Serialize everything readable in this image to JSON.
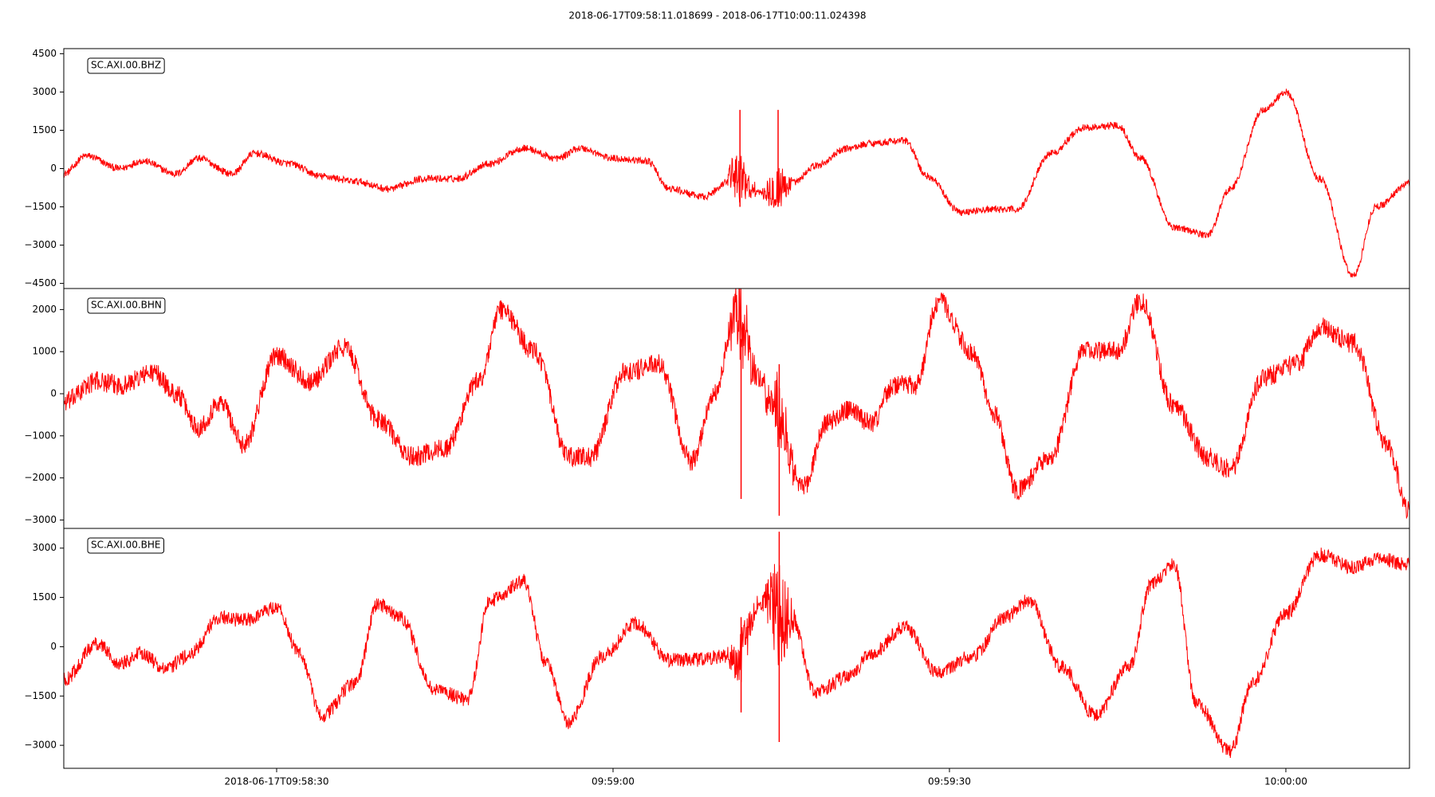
{
  "chart_data": {
    "type": "line",
    "title": "2018-06-17T09:58:11.018699  -  2018-06-17T10:00:11.024398",
    "x_range": [
      "2018-06-17T09:58:11.018699",
      "2018-06-17T10:00:11.024398"
    ],
    "x_ticks": [
      {
        "time": "2018-06-17T09:58:30",
        "label": "2018-06-17T09:58:30"
      },
      {
        "time": "2018-06-17T09:59:00",
        "label": "09:59:00"
      },
      {
        "time": "2018-06-17T09:59:30",
        "label": "09:59:30"
      },
      {
        "time": "2018-06-17T10:00:00",
        "label": "10:00:00"
      }
    ],
    "grid": false,
    "line_color": "#ff0000",
    "panels": [
      {
        "name": "SC.AXI.00.BHZ",
        "ylim": [
          -4700,
          4700
        ],
        "yticks": [
          4500,
          3000,
          1500,
          0,
          -1500,
          -3000,
          -4500
        ],
        "noise_amplitude": 140,
        "trace_x_seconds": [
          0,
          2,
          5,
          7,
          10,
          12,
          15,
          17,
          20,
          23,
          26,
          29,
          32,
          35,
          38,
          41,
          44,
          46,
          49,
          52,
          54,
          57,
          60,
          62,
          65,
          67,
          70,
          72,
          75,
          77,
          80,
          83,
          85,
          88,
          91,
          94,
          96,
          99,
          102,
          104,
          107,
          109,
          112,
          115,
          117,
          120
        ],
        "trace_y_values": [
          -200,
          500,
          0,
          300,
          -200,
          400,
          -200,
          600,
          200,
          -300,
          -500,
          -800,
          -400,
          -400,
          200,
          800,
          400,
          800,
          400,
          300,
          -800,
          -1100,
          -300,
          -900,
          -600,
          100,
          800,
          1000,
          1100,
          -300,
          -1700,
          -1600,
          -1600,
          600,
          1600,
          1700,
          400,
          -2300,
          -2600,
          -800,
          2300,
          3000,
          -400,
          -4200,
          -1500,
          -600
        ],
        "spikes": [
          {
            "t": 60.3,
            "low": -1500,
            "high": 2300
          },
          {
            "t": 63.7,
            "low": -1500,
            "high": 2300
          }
        ]
      },
      {
        "name": "SC.AXI.00.BHN",
        "ylim": [
          -3200,
          2500
        ],
        "yticks": [
          2000,
          1000,
          0,
          -1000,
          -2000,
          -3000
        ],
        "noise_amplitude": 240,
        "trace_x_seconds": [
          0,
          3,
          5,
          8,
          10,
          12,
          14,
          16,
          19,
          22,
          25,
          28,
          31,
          34,
          37,
          39,
          42,
          45,
          47,
          50,
          53,
          56,
          58,
          60,
          62,
          63,
          66,
          68,
          70,
          72,
          74,
          76,
          78,
          81,
          83,
          85,
          88,
          91,
          94,
          96,
          99,
          102,
          104,
          107,
          110,
          112,
          115,
          118,
          120
        ],
        "trace_y_values": [
          -200,
          300,
          200,
          500,
          0,
          -800,
          -200,
          -1200,
          900,
          300,
          1100,
          -600,
          -1500,
          -1300,
          300,
          2000,
          1000,
          -1500,
          -1500,
          500,
          700,
          -1600,
          0,
          1900,
          400,
          -300,
          -2200,
          -700,
          -400,
          -700,
          200,
          200,
          2200,
          1000,
          -500,
          -2300,
          -1500,
          1000,
          1000,
          2200,
          -300,
          -1500,
          -1800,
          400,
          700,
          1600,
          1200,
          -1200,
          -2800
        ],
        "spikes": [
          {
            "t": 60.4,
            "low": -2500,
            "high": 1300
          },
          {
            "t": 63.8,
            "low": -2900,
            "high": 700
          }
        ]
      },
      {
        "name": "SC.AXI.00.BHE",
        "ylim": [
          -3700,
          3600
        ],
        "yticks": [
          3000,
          1500,
          0,
          -1500,
          -3000
        ],
        "noise_amplitude": 220,
        "trace_x_seconds": [
          0,
          3,
          5,
          7,
          9,
          11,
          14,
          16,
          19,
          21,
          23,
          26,
          28,
          30,
          33,
          36,
          38,
          41,
          43,
          45,
          48,
          51,
          54,
          56,
          59,
          60,
          62,
          63,
          65,
          67,
          70,
          72,
          75,
          78,
          81,
          84,
          86,
          89,
          92,
          95,
          97,
          99,
          101,
          104,
          106,
          109,
          112,
          115,
          117,
          120
        ],
        "trace_y_values": [
          -1000,
          100,
          -500,
          -200,
          -700,
          -300,
          900,
          800,
          1200,
          -200,
          -2100,
          -1100,
          1300,
          900,
          -1300,
          -1600,
          1400,
          2000,
          -500,
          -2300,
          -300,
          700,
          -400,
          -400,
          -300,
          -400,
          1300,
          1400,
          800,
          -1400,
          -900,
          -200,
          600,
          -800,
          -300,
          900,
          1400,
          -600,
          -2100,
          -600,
          1900,
          2500,
          -1700,
          -3200,
          -1100,
          1000,
          2800,
          2400,
          2700,
          2500
        ],
        "spikes": [
          {
            "t": 60.4,
            "low": -2000,
            "high": 900
          },
          {
            "t": 63.8,
            "low": -2900,
            "high": 3500
          }
        ]
      }
    ]
  }
}
